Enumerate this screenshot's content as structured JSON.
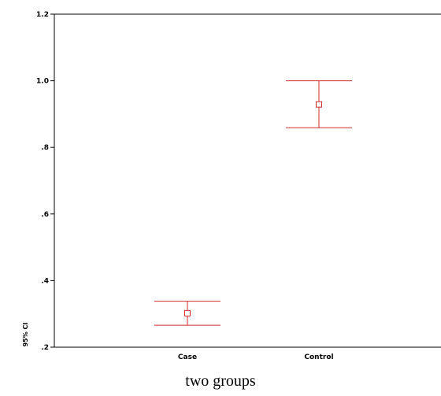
{
  "chart_data": {
    "type": "errorbar",
    "categories": [
      "Case",
      "Control"
    ],
    "series": [
      {
        "values": [
          0.302,
          0.929
        ],
        "lower": [
          0.266,
          0.859
        ],
        "upper": [
          0.338,
          1.0
        ]
      }
    ],
    "ylim": [
      0.2,
      1.2
    ],
    "yticks": [
      0.2,
      0.4,
      0.6,
      0.8,
      1.0,
      1.2
    ],
    "ytick_labels": [
      ".2",
      ".4",
      ".6",
      ".8",
      "1.0",
      "1.2"
    ],
    "ylabel": "95% CI",
    "xlabel": "two groups",
    "color": "#d42b2b",
    "grid": false
  }
}
